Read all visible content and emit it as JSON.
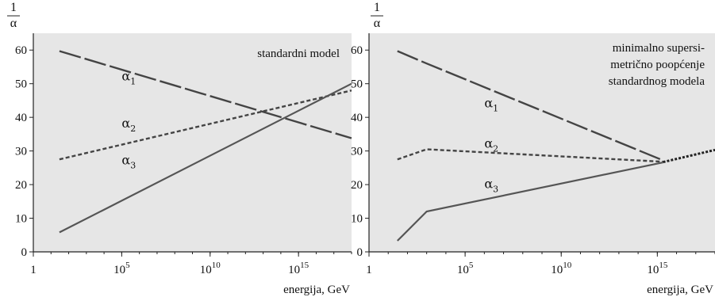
{
  "chart_data": [
    {
      "type": "line",
      "note_lines": [
        "standardni model"
      ],
      "ylabel_num": "1",
      "ylabel_den": "α",
      "xlabel": "energija, GeV",
      "xscale": "log",
      "xlim": [
        1,
        1e+18
      ],
      "ylim": [
        0,
        65
      ],
      "yticks": [
        0,
        10,
        20,
        30,
        40,
        50,
        60
      ],
      "ytick_labels": [
        "0",
        "10",
        "20",
        "30",
        "40",
        "50",
        "60"
      ],
      "xticks": [
        1,
        100000.0,
        10000000000.0,
        1000000000000000.0
      ],
      "xtick_labels": [
        {
          "base": "1",
          "exp": ""
        },
        {
          "base": "10",
          "exp": "5"
        },
        {
          "base": "10",
          "exp": "10"
        },
        {
          "base": "10",
          "exp": "15"
        }
      ],
      "series": [
        {
          "name": "α",
          "sub": "1",
          "style": "long-dash",
          "x": [
            30,
            1e+18
          ],
          "y": [
            59.7,
            33.8
          ],
          "label_at": [
            100000.0,
            51
          ]
        },
        {
          "name": "α",
          "sub": "2",
          "style": "short-dash",
          "x": [
            30,
            1e+18
          ],
          "y": [
            27.5,
            48.0
          ],
          "label_at": [
            100000.0,
            37
          ]
        },
        {
          "name": "α",
          "sub": "3",
          "style": "solid",
          "x": [
            30,
            1e+18
          ],
          "y": [
            5.8,
            50.0
          ],
          "label_at": [
            100000.0,
            26
          ]
        }
      ]
    },
    {
      "type": "line",
      "note_lines": [
        "minimalno supersi-",
        "metrično poopćenje",
        "standardnog modela"
      ],
      "ylabel_num": "1",
      "ylabel_den": "α",
      "xlabel": "energija, GeV",
      "xscale": "log",
      "xlim": [
        1,
        1e+18
      ],
      "ylim": [
        0,
        65
      ],
      "yticks": [
        0,
        10,
        20,
        30,
        40,
        50,
        60
      ],
      "ytick_labels": [
        "0",
        "10",
        "20",
        "30",
        "40",
        "50",
        "60"
      ],
      "xticks": [
        1,
        100000.0,
        10000000000.0,
        1000000000000000.0
      ],
      "xtick_labels": [
        {
          "base": "1",
          "exp": ""
        },
        {
          "base": "10",
          "exp": "5"
        },
        {
          "base": "10",
          "exp": "10"
        },
        {
          "base": "10",
          "exp": "15"
        }
      ],
      "series": [
        {
          "name": "α",
          "sub": "1",
          "style": "long-dash",
          "x": [
            30,
            1000,
            2000000000000000.0
          ],
          "y": [
            59.7,
            56.0,
            27.2
          ],
          "label_at": [
            1000000.0,
            43
          ]
        },
        {
          "name": "α",
          "sub": "2",
          "style": "short-dash",
          "x": [
            30,
            1000,
            2000000000000000.0
          ],
          "y": [
            27.5,
            30.5,
            26.8
          ],
          "label_at": [
            1000000.0,
            31
          ]
        },
        {
          "name": "α",
          "sub": "3",
          "style": "solid",
          "x": [
            30,
            1000,
            2000000000000000.0
          ],
          "y": [
            3.3,
            12.0,
            26.6
          ],
          "label_at": [
            1000000.0,
            19
          ]
        },
        {
          "name": "",
          "sub": "",
          "style": "dotted",
          "x": [
            2000000000000000.0,
            1e+18
          ],
          "y": [
            26.7,
            30.3
          ],
          "label_at": null
        }
      ]
    }
  ]
}
